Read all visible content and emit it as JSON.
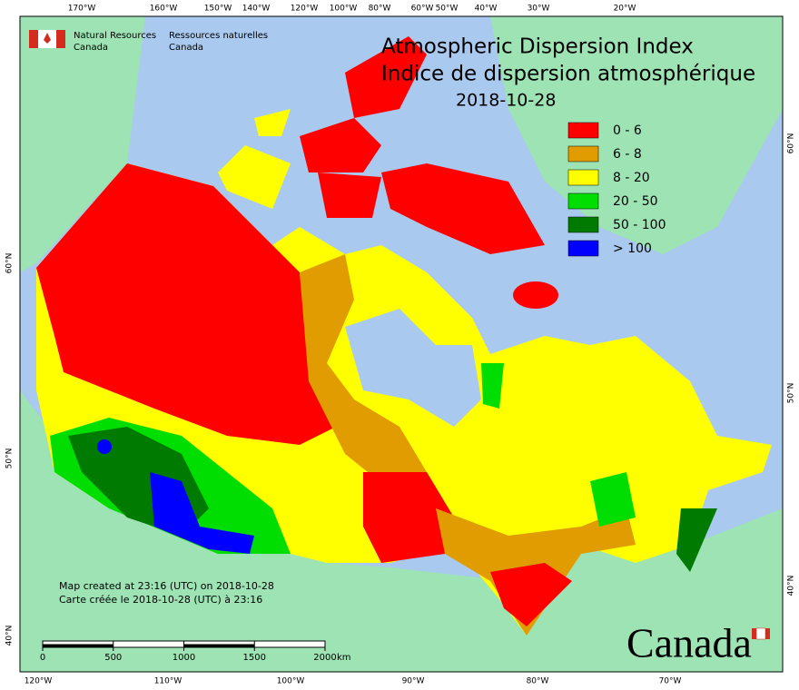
{
  "header": {
    "en": [
      "Natural Resources",
      "Canada"
    ],
    "fr": [
      "Ressources naturelles",
      "Canada"
    ]
  },
  "title": [
    "Atmospheric Dispersion Index",
    "Indice de dispersion atmosphérique"
  ],
  "date": "2018-10-28",
  "legend": [
    {
      "label": "0 - 6",
      "color": "#ff0000"
    },
    {
      "label": "6 - 8",
      "color": "#e09c00"
    },
    {
      "label": "8 - 20",
      "color": "#ffff00"
    },
    {
      "label": "20 - 50",
      "color": "#00dd00"
    },
    {
      "label": "50 - 100",
      "color": "#007a00"
    },
    {
      "label": "> 100",
      "color": "#0000ff"
    }
  ],
  "top_longitudes": [
    "170°W",
    "160°W",
    "150°W",
    "140°W",
    "120°W",
    "100°W",
    "80°W",
    "60°W",
    "50°W",
    "40°W",
    "30°W",
    "20°W"
  ],
  "bottom_longitudes": [
    "120°W",
    "110°W",
    "100°W",
    "90°W",
    "80°W",
    "70°W"
  ],
  "left_latitudes": [
    "60°N",
    "50°N",
    "40°N"
  ],
  "right_latitudes": [
    "60°N",
    "50°N",
    "40°N"
  ],
  "scale": {
    "ticks": [
      0,
      500,
      1000,
      1500,
      2000
    ],
    "unit": "km"
  },
  "footer": [
    "Map created at 23:16 (UTC) on 2018-10-28",
    "Carte créée le 2018-10-28 (UTC) à 23:16"
  ],
  "wordmark": "Canada"
}
